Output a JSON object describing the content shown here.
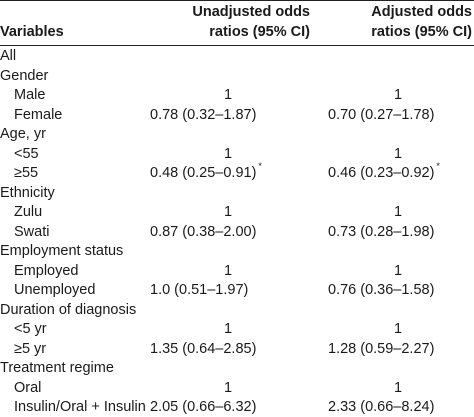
{
  "header": {
    "variables": "Variables",
    "unadjusted_line1": "Unadjusted odds",
    "unadjusted_line2": "ratios (95% CI)",
    "adjusted_line1": "Adjusted odds",
    "adjusted_line2": "ratios (95% CI)"
  },
  "rows": [
    {
      "label": "All",
      "indent": false,
      "unadj": "",
      "adj": "",
      "star1": "",
      "star2": ""
    },
    {
      "label": "Gender",
      "indent": false,
      "unadj": "",
      "adj": "",
      "star1": "",
      "star2": ""
    },
    {
      "label": "Male",
      "indent": true,
      "unadj": "1",
      "adj": "1",
      "star1": "",
      "star2": ""
    },
    {
      "label": "Female",
      "indent": true,
      "unadj": "0.78 (0.32–1.87)",
      "adj": "0.70 (0.27–1.78)",
      "star1": "",
      "star2": ""
    },
    {
      "label": "Age, yr",
      "indent": false,
      "unadj": "",
      "adj": "",
      "star1": "",
      "star2": ""
    },
    {
      "label": "<55",
      "indent": true,
      "unadj": "1",
      "adj": "1",
      "star1": "",
      "star2": ""
    },
    {
      "label": "≥55",
      "indent": true,
      "unadj": "0.48 (0.25–0.91)",
      "adj": "0.46 (0.23–0.92)",
      "star1": "*",
      "star2": "*"
    },
    {
      "label": "Ethnicity",
      "indent": false,
      "unadj": "",
      "adj": "",
      "star1": "",
      "star2": ""
    },
    {
      "label": "Zulu",
      "indent": true,
      "unadj": "1",
      "adj": "1",
      "star1": "",
      "star2": ""
    },
    {
      "label": "Swati",
      "indent": true,
      "unadj": "0.87 (0.38–2.00)",
      "adj": "0.73 (0.28–1.98)",
      "star1": "",
      "star2": ""
    },
    {
      "label": "Employment status",
      "indent": false,
      "unadj": "",
      "adj": "",
      "star1": "",
      "star2": ""
    },
    {
      "label": "Employed",
      "indent": true,
      "unadj": "1",
      "adj": "1",
      "star1": "",
      "star2": ""
    },
    {
      "label": "Unemployed",
      "indent": true,
      "unadj": "1.0 (0.51–1.97)",
      "adj": "0.76 (0.36–1.58)",
      "star1": "",
      "star2": ""
    },
    {
      "label": "Duration of diagnosis",
      "indent": false,
      "unadj": "",
      "adj": "",
      "star1": "",
      "star2": ""
    },
    {
      "label": "<5 yr",
      "indent": true,
      "unadj": "1",
      "adj": "1",
      "star1": "",
      "star2": ""
    },
    {
      "label": "≥5 yr",
      "indent": true,
      "unadj": "1.35 (0.64–2.85)",
      "adj": "1.28 (0.59–2.27)",
      "star1": "",
      "star2": ""
    },
    {
      "label": "Treatment regime",
      "indent": false,
      "unadj": "",
      "adj": "",
      "star1": "",
      "star2": ""
    },
    {
      "label": "Oral",
      "indent": true,
      "unadj": "1",
      "adj": "1",
      "star1": "",
      "star2": ""
    },
    {
      "label": "Insulin/Oral + Insulin",
      "indent": true,
      "unadj": "2.05 (0.66–6.32)",
      "adj": "2.33 (0.66–8.24)",
      "star1": "",
      "star2": ""
    }
  ]
}
